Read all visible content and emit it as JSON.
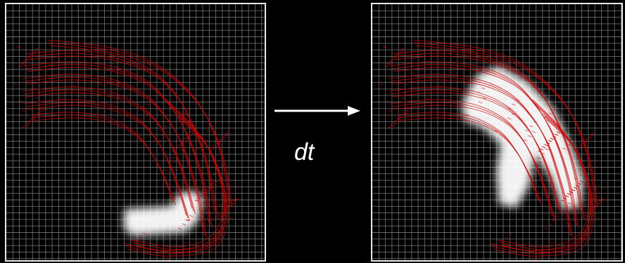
{
  "label": {
    "time_step": "dt"
  },
  "colors": {
    "background": "#000000",
    "grid": "#8a8a8a",
    "border": "#e8e8e8",
    "velocity_field": "#d00000",
    "density": "#ffffff",
    "arrow": "#ffffff"
  },
  "icons": {
    "transition": "right-arrow-icon"
  }
}
